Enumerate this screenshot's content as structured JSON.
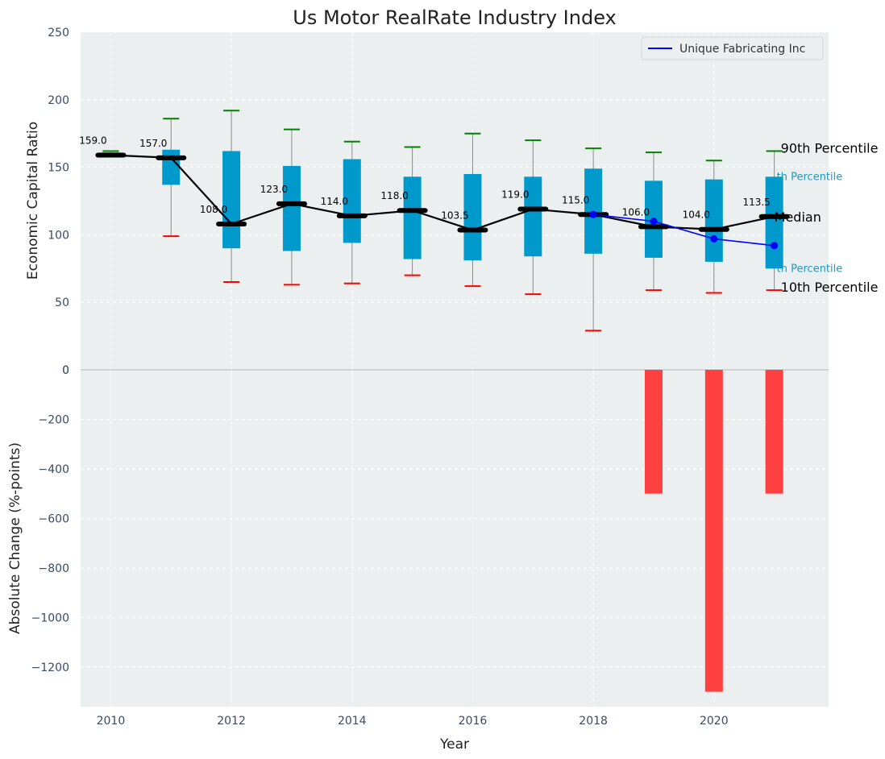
{
  "chart_data": [
    {
      "type": "box",
      "title": "Us Motor RealRate Industry Index",
      "ylabel": "Economic Capital Ratio",
      "ylim": [
        0,
        250
      ],
      "yticks": [
        0,
        50,
        100,
        150,
        200,
        250
      ],
      "xticks": [
        2010,
        2012,
        2014,
        2016,
        2018,
        2020
      ],
      "xlim": [
        2009.5,
        2021.9
      ],
      "grid": true,
      "years": [
        2010,
        2011,
        2012,
        2013,
        2014,
        2015,
        2016,
        2017,
        2018,
        2019,
        2020,
        2021
      ],
      "p90": [
        162,
        186,
        192,
        178,
        169,
        165,
        175,
        170,
        164,
        161,
        155,
        162
      ],
      "q3": [
        161,
        163,
        162,
        151,
        156,
        143,
        145,
        143,
        149,
        140,
        141,
        143
      ],
      "median": [
        159.0,
        157.0,
        108.0,
        123.0,
        114.0,
        118.0,
        103.5,
        119.0,
        115.0,
        106.0,
        104.0,
        113.5
      ],
      "median_labels": [
        "159.0",
        "157.0",
        "108.0",
        "123.0",
        "114.0",
        "118.0",
        "103.5",
        "119.0",
        "115.0",
        "106.0",
        "104.0",
        "113.5"
      ],
      "q1": [
        158,
        137,
        90,
        88,
        94,
        82,
        81,
        84,
        86,
        83,
        80,
        75
      ],
      "p10": [
        158,
        99,
        65,
        63,
        64,
        70,
        62,
        56,
        29,
        59,
        57,
        59
      ],
      "company_series": {
        "name": "Unique Fabricating Inc",
        "x": [
          2018,
          2019,
          2020,
          2021
        ],
        "values": [
          115,
          110,
          97,
          92
        ]
      },
      "legend": {
        "position": "top-right",
        "entries": [
          "Unique Fabricating Inc"
        ]
      },
      "annotations": {
        "p90": "90th Percentile",
        "q3": "th Percentile",
        "median": "Median",
        "q1": "th Percentile",
        "p10": "10th Percentile"
      }
    },
    {
      "type": "bar",
      "ylabel": "Absolute Change (%-points)",
      "xlabel": "Year",
      "ylim": [
        -1360,
        0
      ],
      "yticks": [
        0,
        -200,
        -400,
        -600,
        -800,
        -1000,
        -1200
      ],
      "ytick_labels": [
        "0",
        "−200",
        "−400",
        "−600",
        "−800",
        "−1000",
        "−1200"
      ],
      "grid": true,
      "years": [
        2019,
        2020,
        2021
      ],
      "values": [
        -500,
        -1300,
        -500
      ]
    }
  ],
  "colors": {
    "background": "#ebeff0",
    "box": "#0099cc",
    "median_line": "#000000",
    "company": "#0000ff",
    "p90_cap": "#008000",
    "p10_cap": "#ff0000",
    "bar": "#ff4040"
  }
}
